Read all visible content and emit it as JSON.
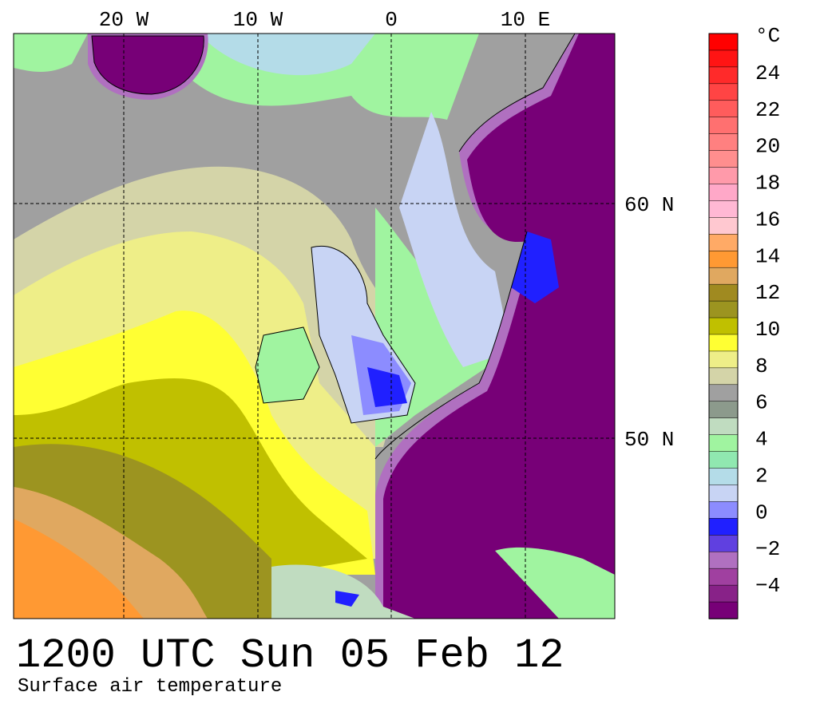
{
  "map": {
    "lon_labels": [
      "20 W",
      "10 W",
      "0",
      "10 E"
    ],
    "lat_labels": [
      "60 N",
      "50 N"
    ],
    "title": "1200 UTC Sun 05 Feb 12",
    "subtitle": "Surface air temperature",
    "colorbar": {
      "unit": "°C",
      "labels": [
        "24",
        "22",
        "20",
        "18",
        "16",
        "14",
        "12",
        "10",
        "8",
        "6",
        "4",
        "2",
        "0",
        "−2",
        "−4"
      ],
      "colors": [
        "#ff0000",
        "#ff1414",
        "#ff2a2a",
        "#ff4444",
        "#ff5c5c",
        "#ff7070",
        "#ff8080",
        "#ff8e8e",
        "#ff9aaa",
        "#ffa8c8",
        "#ffb8d4",
        "#ffc8d0",
        "#ffaa66",
        "#ff9933",
        "#e0a860",
        "#a08a20",
        "#9c9420",
        "#c0c000",
        "#ffff33",
        "#eeee88",
        "#d4d4a8",
        "#a0a0a0",
        "#8c9a8c",
        "#c0dcc0",
        "#a0f4a0",
        "#90e8b0",
        "#b4dce8",
        "#c8d4f4",
        "#8c8cff",
        "#2020ff",
        "#6040e0",
        "#b070c0",
        "#a040a0",
        "#882288",
        "#770077"
      ]
    }
  }
}
